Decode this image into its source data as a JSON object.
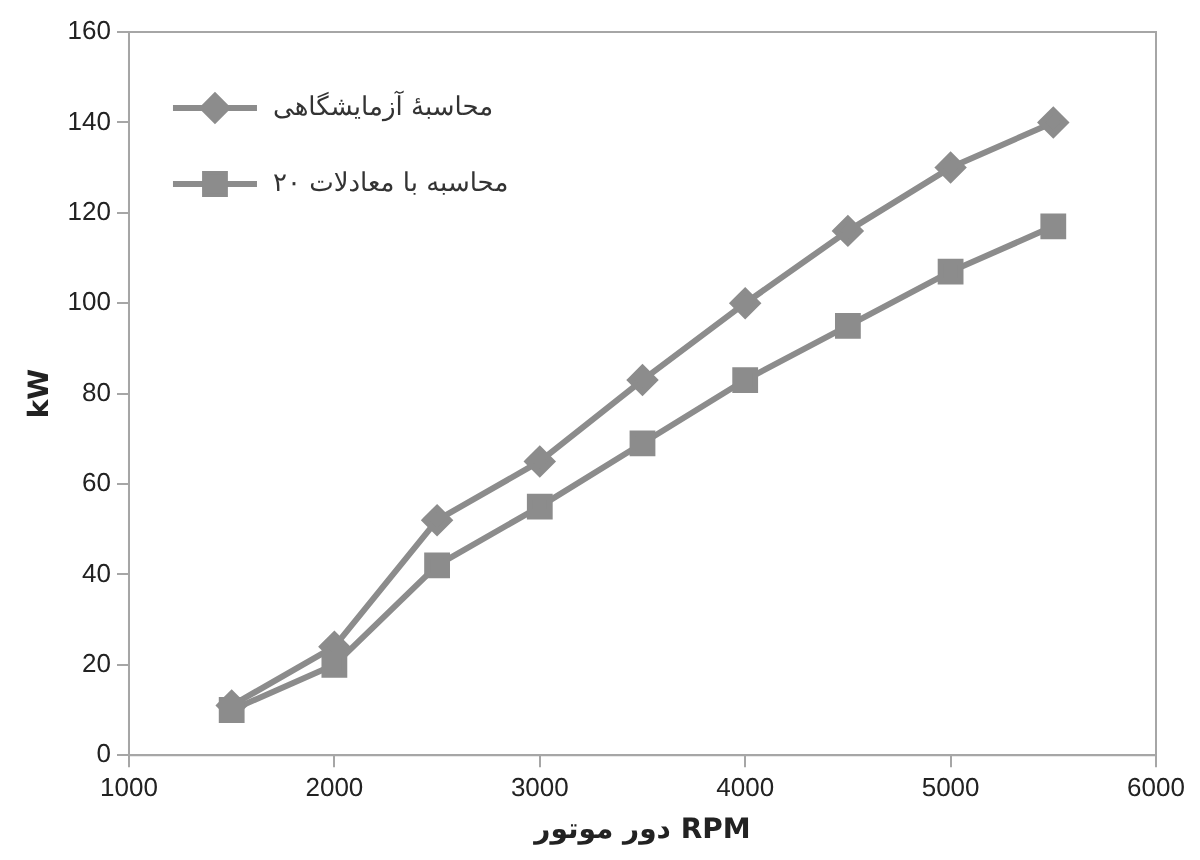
{
  "chart_data": {
    "type": "line",
    "xlabel": "دور موتور RPM",
    "ylabel": "kW",
    "x": [
      1500,
      2000,
      2500,
      3000,
      3500,
      4000,
      4500,
      5000,
      5500
    ],
    "series": [
      {
        "name": "محاسبهٔ آزمایشگاهی",
        "color": "#8c8c8c",
        "marker": "diamond",
        "values": [
          11,
          24,
          52,
          65,
          83,
          100,
          116,
          130,
          140
        ]
      },
      {
        "name": "محاسبه با معادلات ۲۰",
        "color": "#8c8c8c",
        "marker": "square",
        "values": [
          10,
          20,
          42,
          55,
          69,
          83,
          95,
          107,
          117
        ]
      }
    ],
    "xlim": [
      1000,
      6000
    ],
    "xticks": [
      1000,
      2000,
      3000,
      4000,
      5000,
      6000
    ],
    "ylim": [
      0,
      160
    ],
    "yticks": [
      0,
      20,
      40,
      60,
      80,
      100,
      120,
      140,
      160
    ],
    "grid": false,
    "legend": "top left",
    "line_style": "solid"
  }
}
